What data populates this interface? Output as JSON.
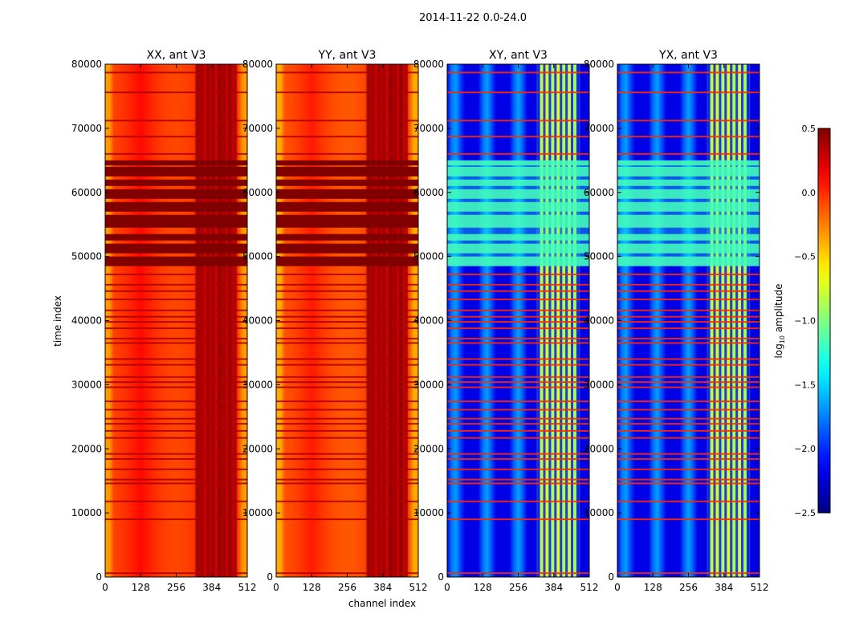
{
  "chart_data": {
    "type": "heatmap",
    "title": "2014-11-22 0.0-24.0",
    "xlabel": "channel index",
    "ylabel": "time index",
    "xlim": [
      0,
      512
    ],
    "ylim": [
      0,
      80000
    ],
    "x_ticks": [
      0,
      128,
      256,
      384,
      512
    ],
    "y_ticks": [
      0,
      10000,
      20000,
      30000,
      40000,
      50000,
      60000,
      70000,
      80000
    ],
    "colorbar": {
      "label": "log10 amplitude",
      "label_base": "log",
      "label_sub": "10",
      "label_rest": " amplitude",
      "range": [
        -2.5,
        0.5
      ],
      "ticks": [
        0.5,
        0.0,
        -0.5,
        -1.0,
        -1.5,
        -2.0,
        -2.5
      ],
      "tick_labels": [
        "0.5",
        "0.0",
        "−0.5",
        "−1.0",
        "−1.5",
        "−2.0",
        "−2.5"
      ],
      "colormap": "jet"
    },
    "panels": [
      {
        "name": "XX, ant V3",
        "polarization": "XX",
        "antenna": "V3",
        "base_log_amplitude": 0.1,
        "rfi_band_log_amplitude": 0.45,
        "flagged_block_log_amplitude": 0.5
      },
      {
        "name": "YY, ant V3",
        "polarization": "YY",
        "antenna": "V3",
        "base_log_amplitude": 0.05,
        "rfi_band_log_amplitude": 0.45,
        "flagged_block_log_amplitude": 0.5
      },
      {
        "name": "XY, ant V3",
        "polarization": "XY",
        "antenna": "V3",
        "base_log_amplitude": -1.9,
        "rfi_band_log_amplitude": -0.6,
        "flagged_block_log_amplitude": -1.1
      },
      {
        "name": "YX, ant V3",
        "polarization": "YX",
        "antenna": "V3",
        "base_log_amplitude": -1.9,
        "rfi_band_log_amplitude": -0.6,
        "flagged_block_log_amplitude": -1.1
      }
    ],
    "rfi_channel_range": [
      320,
      480
    ],
    "flagged_time_ranges": [
      [
        48500,
        50000
      ],
      [
        50500,
        52000
      ],
      [
        52500,
        53500
      ],
      [
        54500,
        56500
      ],
      [
        57000,
        58500
      ],
      [
        59000,
        60500
      ],
      [
        61000,
        62000
      ],
      [
        62500,
        64000
      ],
      [
        64200,
        65000
      ]
    ],
    "horizontal_flag_lines": [
      600,
      9000,
      11800,
      14600,
      15200,
      16800,
      18400,
      19200,
      21700,
      22800,
      23900,
      24700,
      26100,
      27400,
      29600,
      30400,
      31200,
      33100,
      34000,
      36500,
      37200,
      38800,
      39800,
      40600,
      41600,
      43300,
      44600,
      45600,
      47200,
      66000,
      68700,
      71200,
      75600,
      78700
    ]
  }
}
